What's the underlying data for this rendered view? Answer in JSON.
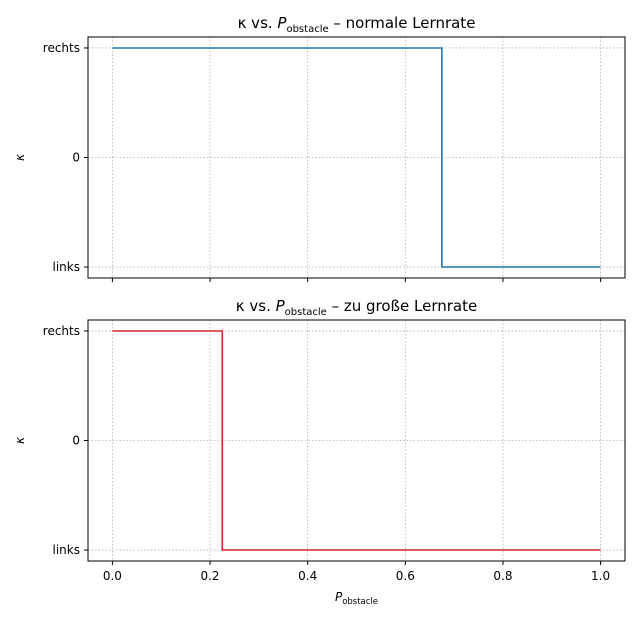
{
  "chart_data": [
    {
      "type": "line",
      "drawstyle": "step",
      "title": {
        "prefix": "κ vs. ",
        "var": "P",
        "var_sub": "obstacle",
        "suffix": " – normale Lernrate"
      },
      "ylabel": "κ",
      "xlabel": null,
      "xlim": [
        -0.05,
        1.05
      ],
      "ylim": [
        -1.1,
        1.1
      ],
      "yticks": [
        {
          "value": -1,
          "label": "links"
        },
        {
          "value": 0,
          "label": "0"
        },
        {
          "value": 1,
          "label": "rechts"
        }
      ],
      "xticks": [
        0.0,
        0.2,
        0.4,
        0.6,
        0.8,
        1.0
      ],
      "show_xtick_labels": false,
      "grid": true,
      "series": [
        {
          "color": "#1f77b4",
          "x": [
            0.0,
            0.675,
            0.675,
            1.0
          ],
          "y": [
            1,
            1,
            -1,
            -1
          ]
        }
      ]
    },
    {
      "type": "line",
      "drawstyle": "step",
      "title": {
        "prefix": "κ vs. ",
        "var": "P",
        "var_sub": "obstacle",
        "suffix": " – zu große Lernrate"
      },
      "ylabel": "κ",
      "xlabel": {
        "var": "P",
        "var_sub": "obstacle"
      },
      "xlim": [
        -0.05,
        1.05
      ],
      "ylim": [
        -1.1,
        1.1
      ],
      "yticks": [
        {
          "value": -1,
          "label": "links"
        },
        {
          "value": 0,
          "label": "0"
        },
        {
          "value": 1,
          "label": "rechts"
        }
      ],
      "xticks": [
        0.0,
        0.2,
        0.4,
        0.6,
        0.8,
        1.0
      ],
      "xtick_labels": [
        "0.0",
        "0.2",
        "0.4",
        "0.6",
        "0.8",
        "1.0"
      ],
      "show_xtick_labels": true,
      "grid": true,
      "series": [
        {
          "color": "#d62728",
          "x": [
            0.0,
            0.225,
            0.225,
            1.0
          ],
          "y": [
            1,
            1,
            -1,
            -1
          ]
        }
      ]
    }
  ]
}
